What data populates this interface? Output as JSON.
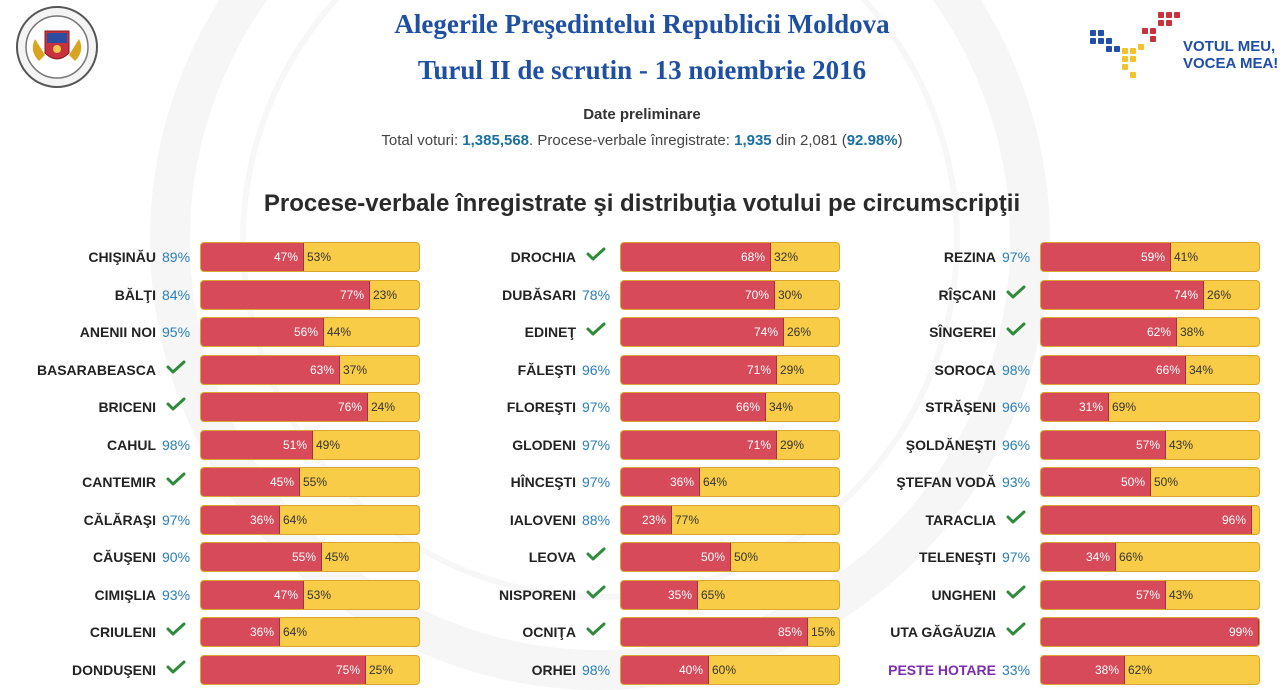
{
  "header": {
    "title_line1": "Alegerile Preşedintelui Republicii Moldova",
    "title_line2": "Turul II de scrutin - 13 noiembrie 2016",
    "emblem_text": "REPUBLICA MOLDOVA · COMISIA ELECTORALĂ CENTRALĂ",
    "brand_line1": "VOTUL MEU,",
    "brand_line2": "VOCEA MEA!"
  },
  "summary": {
    "status": "Date preliminare",
    "total_label": "Total voturi: ",
    "total_votes": "1,385,568",
    "pv_label": ". Procese-verbale înregistrate: ",
    "pv_registered": "1,935",
    "pv_of": " din 2,081 (",
    "pv_percent": "92.98%",
    "pv_close": ")"
  },
  "section_title": "Procese-verbale înregistrate şi distribuţia votului pe circumscripţii",
  "colors": {
    "red": "#d64a5a",
    "yellow": "#f8cc47",
    "check": "#2e8b3a",
    "percent_text": "#2a7fb8"
  },
  "columns": [
    [
      {
        "name": "CHIŞINĂU",
        "reported": "89%",
        "red": 47,
        "yellow": 53
      },
      {
        "name": "BĂLŢI",
        "reported": "84%",
        "red": 77,
        "yellow": 23
      },
      {
        "name": "ANENII NOI",
        "reported": "95%",
        "red": 56,
        "yellow": 44
      },
      {
        "name": "BASARABEASCA",
        "reported": "check",
        "red": 63,
        "yellow": 37
      },
      {
        "name": "BRICENI",
        "reported": "check",
        "red": 76,
        "yellow": 24
      },
      {
        "name": "CAHUL",
        "reported": "98%",
        "red": 51,
        "yellow": 49
      },
      {
        "name": "CANTEMIR",
        "reported": "check",
        "red": 45,
        "yellow": 55
      },
      {
        "name": "CĂLĂRAŞI",
        "reported": "97%",
        "red": 36,
        "yellow": 64
      },
      {
        "name": "CĂUŞENI",
        "reported": "90%",
        "red": 55,
        "yellow": 45
      },
      {
        "name": "CIMIŞLIA",
        "reported": "93%",
        "red": 47,
        "yellow": 53
      },
      {
        "name": "CRIULENI",
        "reported": "check",
        "red": 36,
        "yellow": 64
      },
      {
        "name": "DONDUŞENI",
        "reported": "check",
        "red": 75,
        "yellow": 25
      }
    ],
    [
      {
        "name": "DROCHIA",
        "reported": "check",
        "red": 68,
        "yellow": 32
      },
      {
        "name": "DUBĂSARI",
        "reported": "78%",
        "red": 70,
        "yellow": 30
      },
      {
        "name": "EDINEŢ",
        "reported": "check",
        "red": 74,
        "yellow": 26
      },
      {
        "name": "FĂLEŞTI",
        "reported": "96%",
        "red": 71,
        "yellow": 29
      },
      {
        "name": "FLOREŞTI",
        "reported": "97%",
        "red": 66,
        "yellow": 34
      },
      {
        "name": "GLODENI",
        "reported": "97%",
        "red": 71,
        "yellow": 29
      },
      {
        "name": "HÎNCEŞTI",
        "reported": "97%",
        "red": 36,
        "yellow": 64
      },
      {
        "name": "IALOVENI",
        "reported": "88%",
        "red": 23,
        "yellow": 77
      },
      {
        "name": "LEOVA",
        "reported": "check",
        "red": 50,
        "yellow": 50
      },
      {
        "name": "NISPORENI",
        "reported": "check",
        "red": 35,
        "yellow": 65
      },
      {
        "name": "OCNIŢA",
        "reported": "check",
        "red": 85,
        "yellow": 15
      },
      {
        "name": "ORHEI",
        "reported": "98%",
        "red": 40,
        "yellow": 60
      }
    ],
    [
      {
        "name": "REZINA",
        "reported": "97%",
        "red": 59,
        "yellow": 41
      },
      {
        "name": "RÎŞCANI",
        "reported": "check",
        "red": 74,
        "yellow": 26
      },
      {
        "name": "SÎNGEREI",
        "reported": "check",
        "red": 62,
        "yellow": 38
      },
      {
        "name": "SOROCA",
        "reported": "98%",
        "red": 66,
        "yellow": 34
      },
      {
        "name": "STRĂŞENI",
        "reported": "96%",
        "red": 31,
        "yellow": 69
      },
      {
        "name": "ŞOLDĂNEŞTI",
        "reported": "96%",
        "red": 57,
        "yellow": 43
      },
      {
        "name": "ŞTEFAN VODĂ",
        "reported": "93%",
        "red": 50,
        "yellow": 50
      },
      {
        "name": "TARACLIA",
        "reported": "check",
        "red": 96,
        "yellow": 4
      },
      {
        "name": "TELENEŞTI",
        "reported": "97%",
        "red": 34,
        "yellow": 66
      },
      {
        "name": "UNGHENI",
        "reported": "check",
        "red": 57,
        "yellow": 43
      },
      {
        "name": "UTA GĂGĂUZIA",
        "reported": "check",
        "red": 99,
        "yellow": 1
      },
      {
        "name": "PESTE HOTARE",
        "reported": "33%",
        "red": 38,
        "yellow": 62,
        "highlight": true
      }
    ]
  ]
}
